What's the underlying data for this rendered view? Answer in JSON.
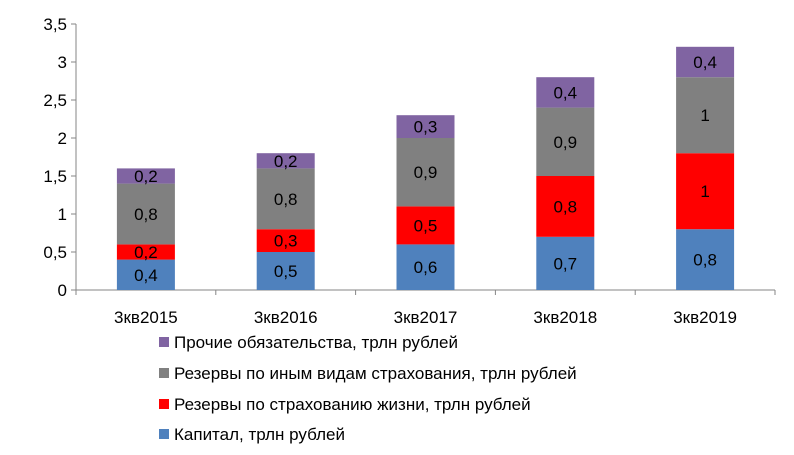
{
  "chart_data": {
    "type": "bar",
    "stacked": true,
    "title": "",
    "xlabel": "",
    "ylabel": "",
    "ylim": [
      0,
      3.5
    ],
    "yticks": [
      "0",
      "0,5",
      "1",
      "1,5",
      "2",
      "2,5",
      "3",
      "3,5"
    ],
    "ytick_values": [
      0,
      0.5,
      1,
      1.5,
      2,
      2.5,
      3,
      3.5
    ],
    "grid": false,
    "legend_position": "bottom",
    "categories": [
      "3кв2015",
      "3кв2016",
      "3кв2017",
      "3кв2018",
      "3кв2019"
    ],
    "series": [
      {
        "name": "Капитал, трлн рублей",
        "color": "#4F81BD",
        "values": [
          0.4,
          0.5,
          0.6,
          0.7,
          0.8
        ],
        "labels": [
          "0,4",
          "0,5",
          "0,6",
          "0,7",
          "0,8"
        ]
      },
      {
        "name": "Резервы по страхованию жизни, трлн рублей",
        "color": "#FF0000",
        "values": [
          0.2,
          0.3,
          0.5,
          0.8,
          1
        ],
        "labels": [
          "0,2",
          "0,3",
          "0,5",
          "0,8",
          "1"
        ]
      },
      {
        "name": "Резервы по иным видам страхования, трлн рублей",
        "color": "#808080",
        "values": [
          0.8,
          0.8,
          0.9,
          0.9,
          1
        ],
        "labels": [
          "0,8",
          "0,8",
          "0,9",
          "0,9",
          "1"
        ]
      },
      {
        "name": "Прочие обязательства, трлн рублей",
        "color": "#8064A2",
        "values": [
          0.2,
          0.2,
          0.3,
          0.4,
          0.4
        ],
        "labels": [
          "0,2",
          "0,2",
          "0,3",
          "0,4",
          "0,4"
        ]
      }
    ]
  }
}
